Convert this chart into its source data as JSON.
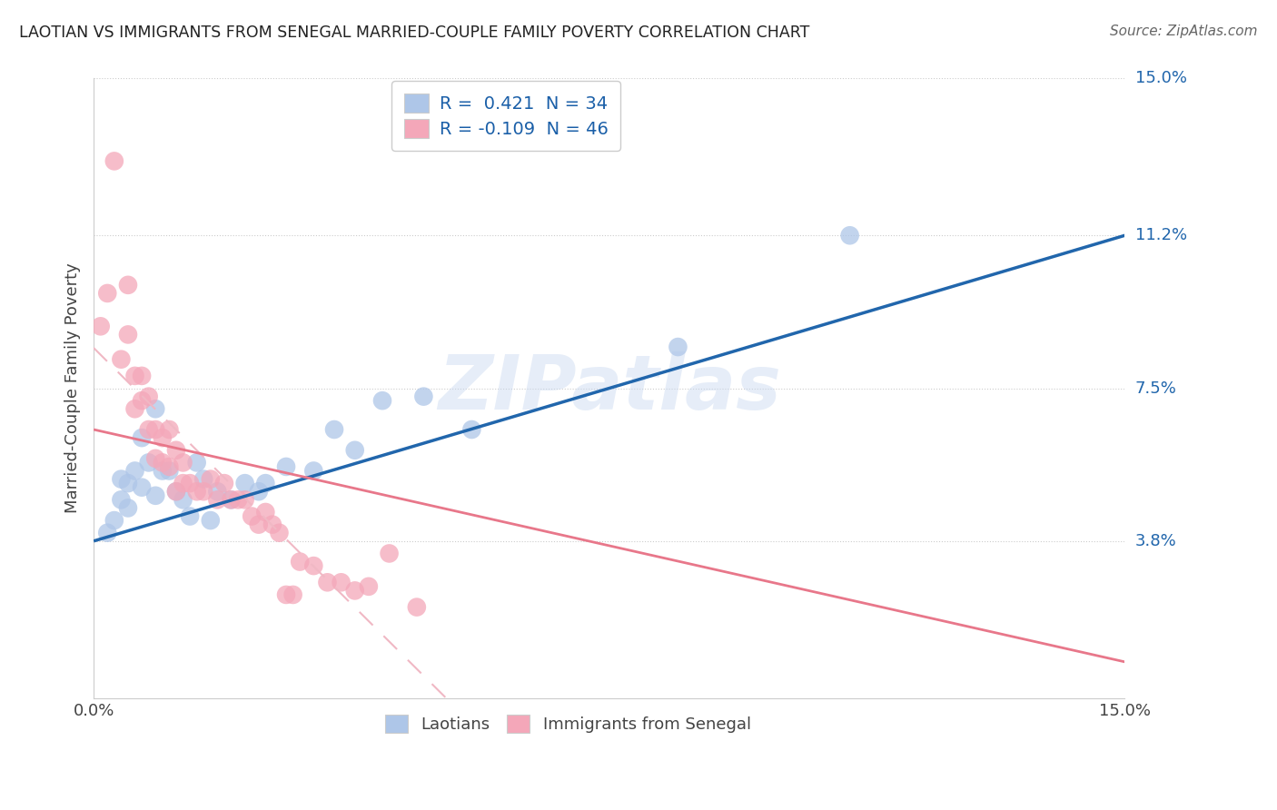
{
  "title": "LAOTIAN VS IMMIGRANTS FROM SENEGAL MARRIED-COUPLE FAMILY POVERTY CORRELATION CHART",
  "source": "Source: ZipAtlas.com",
  "ylabel": "Married-Couple Family Poverty",
  "xlabel": "",
  "xmin": 0.0,
  "xmax": 0.15,
  "ymin": 0.0,
  "ymax": 0.15,
  "laotian_color": "#aec6e8",
  "senegal_color": "#f4a7b9",
  "laotian_line_color": "#2166ac",
  "senegal_line_solid_color": "#e8778a",
  "senegal_line_dash_color": "#f0b8c4",
  "legend_label1": "Laotians",
  "legend_label2": "Immigrants from Senegal",
  "watermark": "ZIPatlas",
  "laotian_x": [
    0.002,
    0.003,
    0.004,
    0.004,
    0.005,
    0.005,
    0.006,
    0.007,
    0.007,
    0.008,
    0.009,
    0.009,
    0.01,
    0.011,
    0.012,
    0.013,
    0.014,
    0.015,
    0.016,
    0.017,
    0.018,
    0.02,
    0.022,
    0.024,
    0.025,
    0.028,
    0.032,
    0.035,
    0.038,
    0.042,
    0.048,
    0.055,
    0.085,
    0.11
  ],
  "laotian_y": [
    0.04,
    0.043,
    0.048,
    0.053,
    0.046,
    0.052,
    0.055,
    0.051,
    0.063,
    0.057,
    0.049,
    0.07,
    0.055,
    0.055,
    0.05,
    0.048,
    0.044,
    0.057,
    0.053,
    0.043,
    0.05,
    0.048,
    0.052,
    0.05,
    0.052,
    0.056,
    0.055,
    0.065,
    0.06,
    0.072,
    0.073,
    0.065,
    0.085,
    0.112
  ],
  "senegal_x": [
    0.001,
    0.002,
    0.003,
    0.004,
    0.005,
    0.005,
    0.006,
    0.006,
    0.007,
    0.007,
    0.008,
    0.008,
    0.009,
    0.009,
    0.01,
    0.01,
    0.011,
    0.011,
    0.012,
    0.012,
    0.013,
    0.013,
    0.014,
    0.015,
    0.016,
    0.017,
    0.018,
    0.019,
    0.02,
    0.021,
    0.022,
    0.023,
    0.024,
    0.025,
    0.026,
    0.027,
    0.028,
    0.029,
    0.03,
    0.032,
    0.034,
    0.036,
    0.038,
    0.04,
    0.043,
    0.047
  ],
  "senegal_y": [
    0.09,
    0.098,
    0.13,
    0.082,
    0.088,
    0.1,
    0.07,
    0.078,
    0.072,
    0.078,
    0.065,
    0.073,
    0.058,
    0.065,
    0.057,
    0.063,
    0.056,
    0.065,
    0.05,
    0.06,
    0.052,
    0.057,
    0.052,
    0.05,
    0.05,
    0.053,
    0.048,
    0.052,
    0.048,
    0.048,
    0.048,
    0.044,
    0.042,
    0.045,
    0.042,
    0.04,
    0.025,
    0.025,
    0.033,
    0.032,
    0.028,
    0.028,
    0.026,
    0.027,
    0.035,
    0.022
  ]
}
